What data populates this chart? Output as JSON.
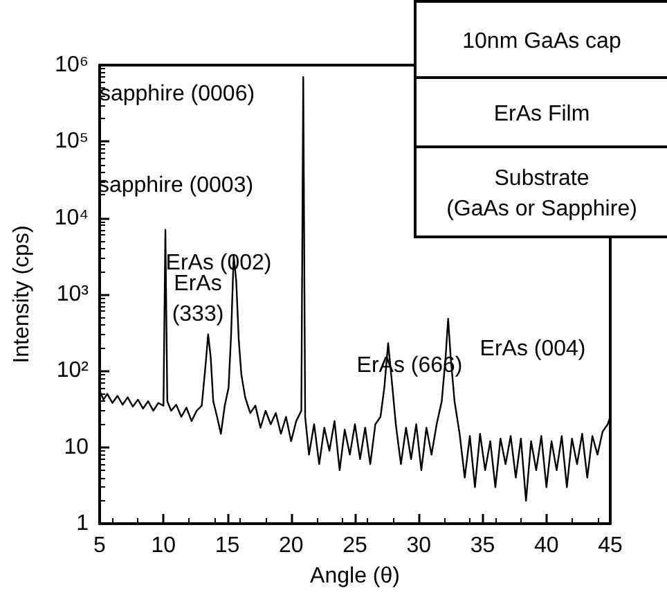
{
  "chart_data": {
    "type": "line",
    "xlabel": "Angle (θ)",
    "ylabel": "Intensity (cps)",
    "log": "y",
    "grid": false,
    "marker": "none",
    "line_style": "solid",
    "xlim": [
      5,
      45
    ],
    "xticks": [
      5,
      10,
      15,
      20,
      25,
      30,
      35,
      40,
      45
    ],
    "ylim": [
      1,
      1000000
    ],
    "yticks": [
      1,
      10,
      {
        "value": 100,
        "label": "10²"
      },
      {
        "value": 1000,
        "label": "10³"
      },
      {
        "value": 10000,
        "label": "10⁴"
      },
      {
        "value": 100000,
        "label": "10⁵"
      },
      {
        "value": 1000000,
        "label": "10⁶"
      }
    ],
    "series": [
      {
        "color": "#000000",
        "x": [
          5,
          5.3,
          5.6,
          6,
          6.4,
          6.8,
          7.2,
          7.6,
          8,
          8.4,
          8.8,
          9.2,
          9.6,
          10,
          10.15,
          10.3,
          10.6,
          11,
          11.4,
          11.8,
          12.2,
          12.6,
          13,
          13.3,
          13.5,
          13.7,
          13.9,
          14.2,
          14.5,
          14.8,
          15.1,
          15.3,
          15.5,
          15.7,
          15.9,
          16.1,
          16.4,
          16.8,
          17.2,
          17.6,
          18,
          18.4,
          18.8,
          19.2,
          19.6,
          20,
          20.4,
          20.8,
          20.95,
          21.1,
          21.4,
          21.8,
          22.2,
          22.6,
          23,
          23.4,
          23.8,
          24.2,
          24.6,
          25,
          25.4,
          25.8,
          26.2,
          26.6,
          27,
          27.3,
          27.6,
          27.9,
          28.2,
          28.6,
          29,
          29.4,
          29.8,
          30.2,
          30.6,
          31,
          31.4,
          31.8,
          32.1,
          32.3,
          32.5,
          32.8,
          33.2,
          33.6,
          34,
          34.4,
          34.8,
          35.2,
          35.6,
          36,
          36.4,
          36.8,
          37.2,
          37.6,
          38,
          38.4,
          38.8,
          39.2,
          39.6,
          40,
          40.4,
          40.8,
          41.2,
          41.6,
          42,
          42.4,
          42.8,
          43.2,
          43.6,
          44,
          44.4,
          44.8,
          45
        ],
        "values": [
          55,
          42,
          50,
          38,
          47,
          36,
          45,
          34,
          42,
          32,
          40,
          30,
          38,
          35,
          7000,
          40,
          30,
          36,
          25,
          33,
          22,
          30,
          35,
          120,
          300,
          150,
          40,
          25,
          15,
          35,
          60,
          300,
          3200,
          1500,
          250,
          90,
          45,
          28,
          35,
          18,
          30,
          20,
          28,
          15,
          25,
          12,
          22,
          30,
          700000,
          25,
          8,
          20,
          6,
          18,
          9,
          22,
          5,
          17,
          8,
          20,
          7,
          18,
          6,
          20,
          25,
          60,
          230,
          70,
          20,
          6,
          18,
          7,
          20,
          5,
          18,
          8,
          20,
          40,
          150,
          480,
          150,
          40,
          15,
          4,
          14,
          3,
          15,
          5,
          12,
          3,
          13,
          6,
          14,
          4,
          13,
          2,
          12,
          5,
          14,
          3,
          12,
          5,
          14,
          3,
          13,
          6,
          15,
          4,
          14,
          8,
          16,
          20,
          25
        ]
      }
    ],
    "annotations": [
      "sapphire (0006)",
      "sapphire (0003)",
      "ErAs (002)",
      "ErAs (333)",
      "ErAs (666)",
      "ErAs (004)",
      "10nm GaAs cap",
      "ErAs Film",
      "Substrate (GaAs or Sapphire)"
    ]
  }
}
